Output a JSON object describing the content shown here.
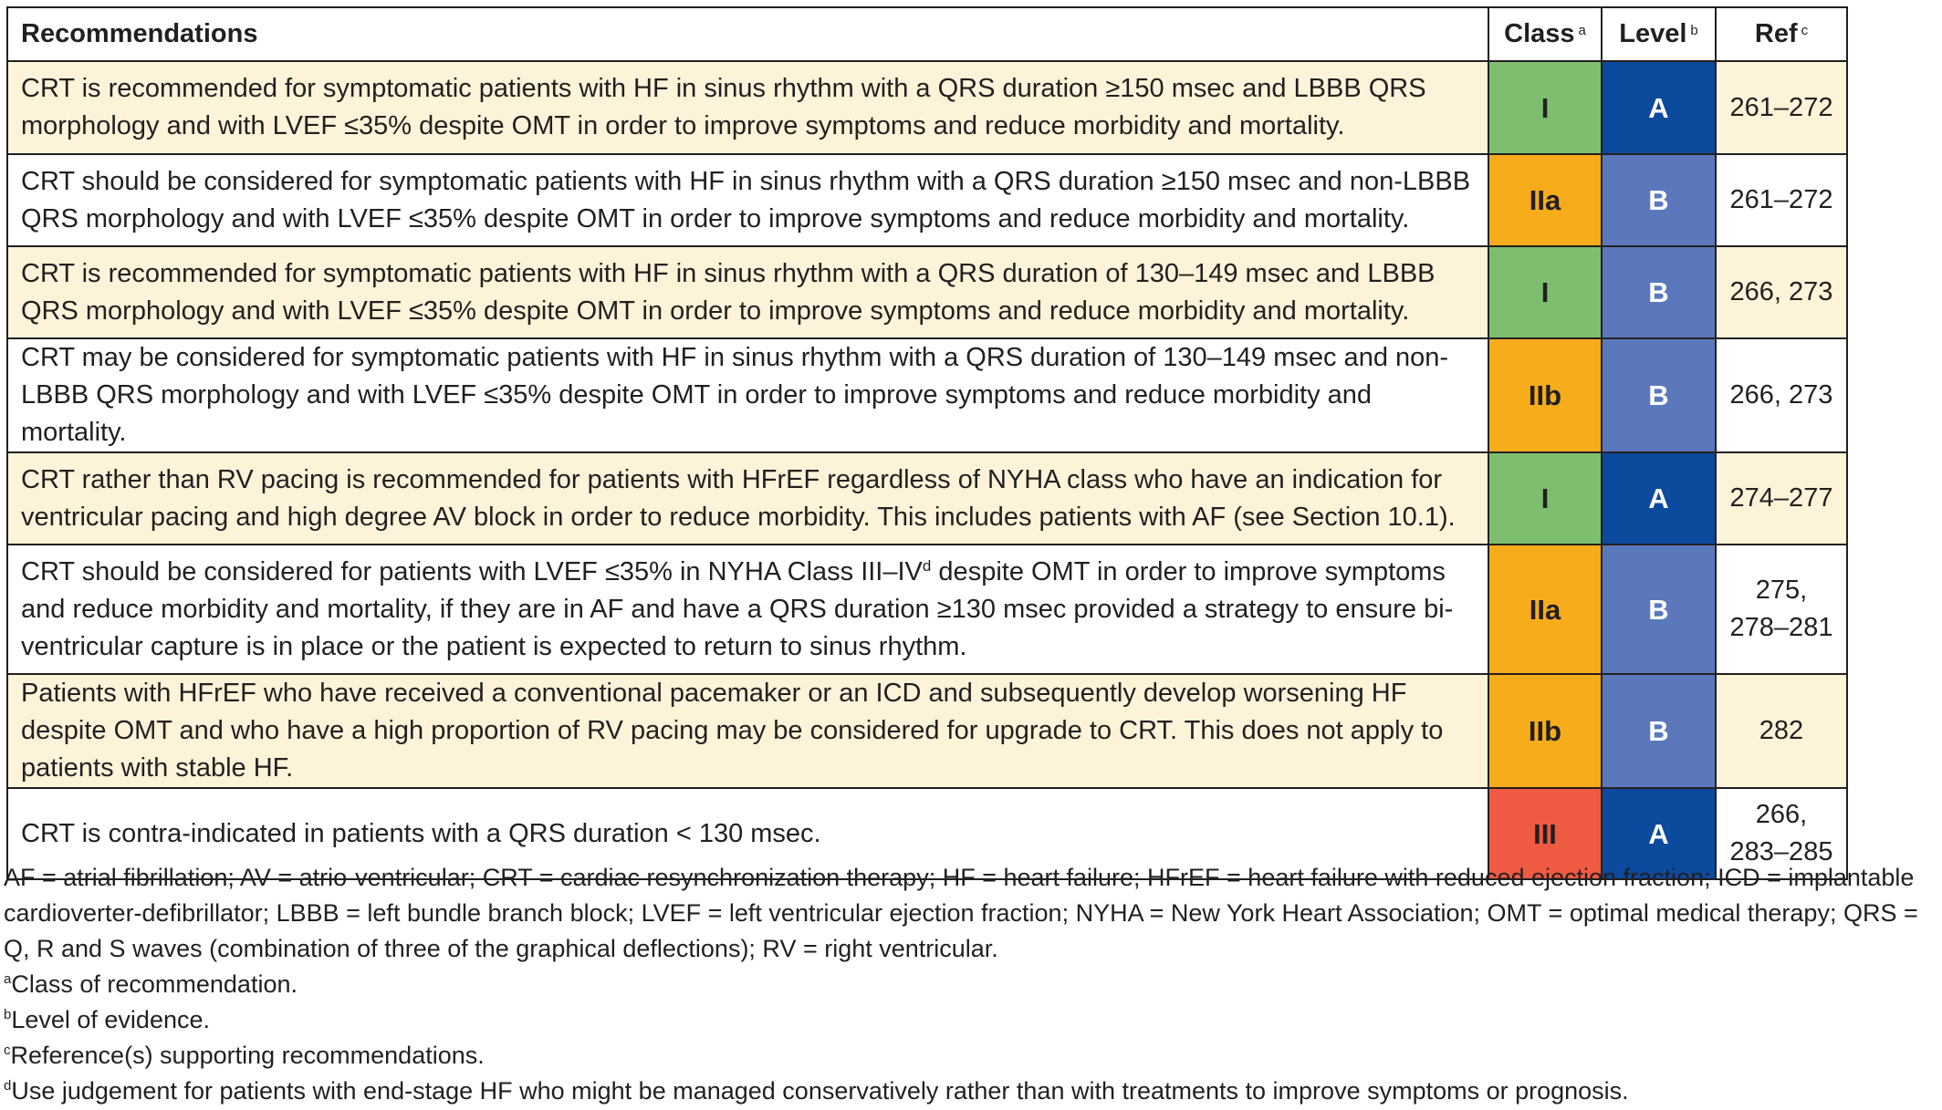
{
  "table": {
    "headers": {
      "recommendations": "Recommendations",
      "class": "Class",
      "class_mark": "a",
      "level": "Level",
      "level_mark": "b",
      "ref": "Ref",
      "ref_mark": "c"
    },
    "rows": [
      {
        "text": "CRT is recommended for symptomatic patients with HF in sinus rhythm with a QRS duration ≥150 msec and LBBB QRS morphology and with LVEF ≤35% despite OMT in order to improve symptoms and reduce morbidity and mortality.",
        "class": "I",
        "level": "A",
        "ref": "261–272"
      },
      {
        "text": "CRT should be considered for symptomatic patients with HF in sinus rhythm with a QRS duration ≥150 msec and non-LBBB QRS morphology and with LVEF ≤35% despite OMT in order to improve symptoms and reduce morbidity and mortality.",
        "class": "IIa",
        "level": "B",
        "ref": "261–272"
      },
      {
        "text": "CRT is recommended for symptomatic patients with HF in sinus rhythm with a QRS duration of 130–149 msec and LBBB QRS morphology and with LVEF ≤35% despite OMT in order to improve symptoms and reduce morbidity and mortality.",
        "class": "I",
        "level": "B",
        "ref": "266, 273"
      },
      {
        "text": "CRT may be considered for symptomatic patients with HF in sinus rhythm with a QRS duration of 130–149 msec and non-LBBB QRS morphology and with LVEF ≤35% despite OMT in order to improve symptoms and reduce morbidity and mortality.",
        "class": "IIb",
        "level": "B",
        "ref": "266, 273"
      },
      {
        "text": "CRT rather than RV pacing is recommended for patients with HFrEF regardless of NYHA class who have an indication for ventricular pacing and high degree AV block in order to reduce morbidity. This includes patients with AF (see Section 10.1).",
        "class": "I",
        "level": "A",
        "ref": "274–277"
      },
      {
        "text_before": "CRT should be considered for patients with LVEF ≤35% in NYHA Class III–IV",
        "text_mark": "d",
        "text_after": " despite OMT in order to improve symptoms and reduce morbidity and mortality, if they are in AF and have a QRS duration ≥130 msec provided a strategy to ensure bi-ventricular capture is in place or the patient is expected to return to sinus rhythm.",
        "class": "IIa",
        "level": "B",
        "ref_line1": "275,",
        "ref_line2": "278–281"
      },
      {
        "text": "Patients with HFrEF who have received a conventional pacemaker or an ICD and subsequently develop worsening HF despite OMT and who have a high proportion of RV pacing may be considered for upgrade to CRT. This does not apply to patients with stable HF.",
        "class": "IIb",
        "level": "B",
        "ref": "282"
      },
      {
        "text": "CRT is contra-indicated in patients with a QRS duration < 130 msec.",
        "class": "III",
        "level": "A",
        "ref_line1": "266,",
        "ref_line2": "283–285"
      }
    ]
  },
  "footnotes": {
    "abbreviations": "AF = atrial fibrillation; AV = atrio-ventricular; CRT = cardiac resynchronization therapy; HF = heart failure; HFrEF = heart failure with reduced ejection fraction; ICD = implantable cardioverter-defibrillator; LBBB = left bundle branch block; LVEF = left ventricular ejection fraction; NYHA = New York Heart Association; OMT = optimal medical therapy; QRS = Q, R and S waves (combination of three of the graphical deflections); RV = right ventricular.",
    "notes": [
      {
        "mark": "a",
        "text": "Class of recommendation."
      },
      {
        "mark": "b",
        "text": "Level of evidence."
      },
      {
        "mark": "c",
        "text": "Reference(s) supporting recommendations."
      },
      {
        "mark": "d",
        "text": "Use judgement for patients with end-stage HF who might be managed conservatively rather than with treatments to improve symptoms or prognosis."
      }
    ]
  },
  "colors": {
    "class_I": "#7dbf6e",
    "class_IIa": "#f7ac1b",
    "class_IIb": "#f7ac1b",
    "class_III": "#ef5a42",
    "level_A": "#0c4a9e",
    "level_B": "#5b78bd",
    "shaded_row": "#fdf3d9",
    "border": "#231f20"
  }
}
